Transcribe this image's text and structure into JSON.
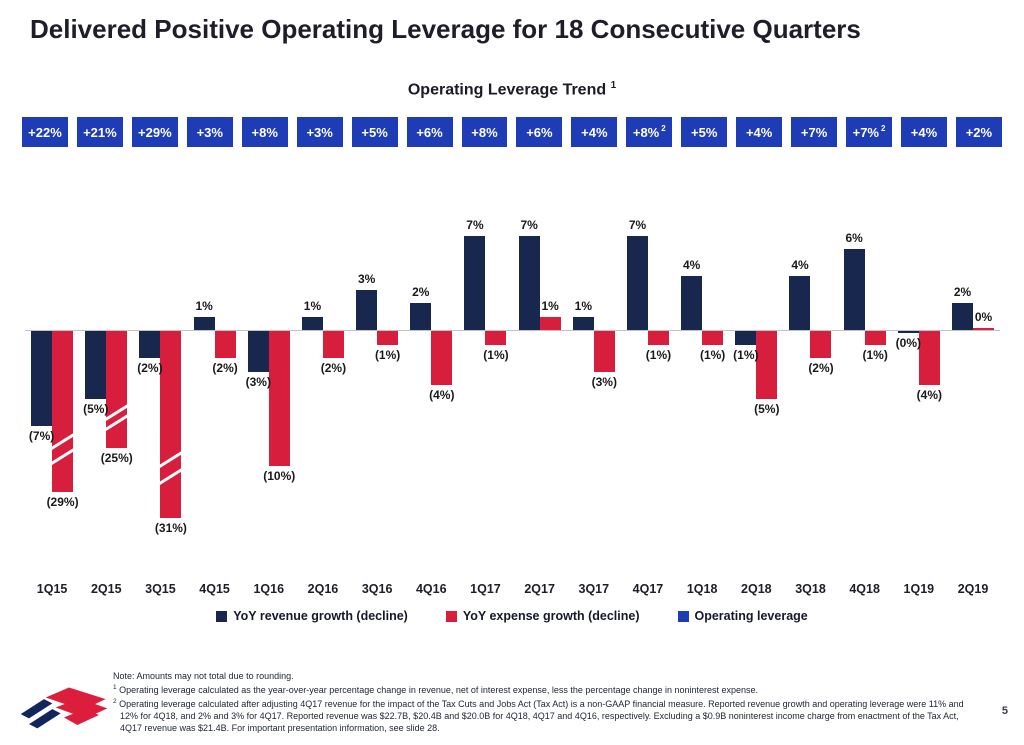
{
  "page": {
    "title": "Delivered Positive Operating Leverage for 18 Consecutive Quarters",
    "page_number": "5"
  },
  "chart_data": {
    "type": "bar",
    "title": "Operating Leverage Trend",
    "title_sup": "1",
    "y_axis_visible": false,
    "grid": false,
    "legend_position": "bottom-center",
    "categories": [
      "1Q15",
      "2Q15",
      "3Q15",
      "4Q15",
      "1Q16",
      "2Q16",
      "3Q16",
      "4Q16",
      "1Q17",
      "2Q17",
      "3Q17",
      "4Q17",
      "1Q18",
      "2Q18",
      "3Q18",
      "4Q18",
      "1Q19",
      "2Q19"
    ],
    "badges": [
      {
        "label": "+22%",
        "sup": ""
      },
      {
        "label": "+21%",
        "sup": ""
      },
      {
        "label": "+29%",
        "sup": ""
      },
      {
        "label": "+3%",
        "sup": ""
      },
      {
        "label": "+8%",
        "sup": ""
      },
      {
        "label": "+3%",
        "sup": ""
      },
      {
        "label": "+5%",
        "sup": ""
      },
      {
        "label": "+6%",
        "sup": ""
      },
      {
        "label": "+8%",
        "sup": ""
      },
      {
        "label": "+6%",
        "sup": ""
      },
      {
        "label": "+4%",
        "sup": ""
      },
      {
        "label": "+8%",
        "sup": "2"
      },
      {
        "label": "+5%",
        "sup": ""
      },
      {
        "label": "+4%",
        "sup": ""
      },
      {
        "label": "+7%",
        "sup": ""
      },
      {
        "label": "+7%",
        "sup": "2"
      },
      {
        "label": "+4%",
        "sup": ""
      },
      {
        "label": "+2%",
        "sup": ""
      }
    ],
    "series": [
      {
        "name": "YoY revenue growth (decline)",
        "key": "revenue",
        "color": "#17274e",
        "bars": [
          {
            "label": "(7%)",
            "value": -7,
            "h": 7
          },
          {
            "label": "(5%)",
            "value": -5,
            "h": 5
          },
          {
            "label": "(2%)",
            "value": -2,
            "h": 2
          },
          {
            "label": "1%",
            "value": 1,
            "h": 1
          },
          {
            "label": "(3%)",
            "value": -3,
            "h": 3
          },
          {
            "label": "1%",
            "value": 1,
            "h": 1
          },
          {
            "label": "3%",
            "value": 3,
            "h": 3
          },
          {
            "label": "2%",
            "value": 2,
            "h": 2
          },
          {
            "label": "7%",
            "value": 7,
            "h": 7
          },
          {
            "label": "7%",
            "value": 7,
            "h": 7
          },
          {
            "label": "1%",
            "value": 1,
            "h": 1
          },
          {
            "label": "7%",
            "value": 7,
            "h": 7
          },
          {
            "label": "4%",
            "value": 4,
            "h": 4
          },
          {
            "label": "(1%)",
            "value": -1,
            "h": 1
          },
          {
            "label": "4%",
            "value": 4,
            "h": 4
          },
          {
            "label": "6%",
            "value": 6,
            "h": 6
          },
          {
            "label": "(0%)",
            "value": 0,
            "h": 0.18,
            "neg": true
          },
          {
            "label": "2%",
            "value": 2,
            "h": 2
          }
        ]
      },
      {
        "name": "YoY expense growth (decline)",
        "key": "expense",
        "color": "#d81e3d",
        "bars": [
          {
            "label": "(29%)",
            "value": -29,
            "h": 11.9,
            "truncated": true
          },
          {
            "label": "(25%)",
            "value": -25,
            "h": 8.7,
            "truncated": true
          },
          {
            "label": "(31%)",
            "value": -31,
            "h": 13.85,
            "truncated": true
          },
          {
            "label": "(2%)",
            "value": -2,
            "h": 2
          },
          {
            "label": "(10%)",
            "value": -10,
            "h": 10
          },
          {
            "label": "(2%)",
            "value": -2,
            "h": 2
          },
          {
            "label": "(1%)",
            "value": -1,
            "h": 1
          },
          {
            "label": "(4%)",
            "value": -4,
            "h": 4
          },
          {
            "label": "(1%)",
            "value": -1,
            "h": 1
          },
          {
            "label": "1%",
            "value": 1,
            "h": 1
          },
          {
            "label": "(3%)",
            "value": -3,
            "h": 3
          },
          {
            "label": "(1%)",
            "value": -1,
            "h": 1
          },
          {
            "label": "(1%)",
            "value": -1,
            "h": 1
          },
          {
            "label": "(5%)",
            "value": -5,
            "h": 5
          },
          {
            "label": "(2%)",
            "value": -2,
            "h": 2
          },
          {
            "label": "(1%)",
            "value": -1,
            "h": 1
          },
          {
            "label": "(4%)",
            "value": -4,
            "h": 4
          },
          {
            "label": "0%",
            "value": 0,
            "h": 0.18
          }
        ]
      }
    ],
    "legend": [
      {
        "label": "YoY revenue growth (decline)",
        "color": "#17274e"
      },
      {
        "label": "YoY expense growth (decline)",
        "color": "#d81e3d"
      },
      {
        "label": "Operating leverage",
        "color": "#1e3cb5"
      }
    ]
  },
  "colors": {
    "badge_blue": "#1e3cb5",
    "revenue_navy": "#17274e",
    "expense_red": "#d81e3d",
    "axis_gray": "#c3c3c3",
    "logo_blue": "#12265e",
    "logo_red": "#dc1e3c"
  },
  "footnotes": {
    "note": "Note: Amounts may not total due to rounding.",
    "fn1_sup": "1",
    "fn1": "Operating leverage calculated as the year-over-year percentage change in revenue, net of interest expense, less the percentage change in noninterest expense.",
    "fn2_sup": "2",
    "fn2": "Operating leverage calculated after adjusting 4Q17 revenue for the impact of the Tax Cuts and Jobs Act (Tax Act) is a non-GAAP financial measure. Reported revenue growth and operating leverage were 11% and 12% for 4Q18, and 2% and 3% for 4Q17. Reported revenue was $22.7B, $20.4B and $20.0B for 4Q18, 4Q17 and 4Q16, respectively. Excluding a $0.9B noninterest income charge from enactment of the Tax Act, 4Q17 revenue was $21.4B. For important presentation information, see slide 28."
  }
}
